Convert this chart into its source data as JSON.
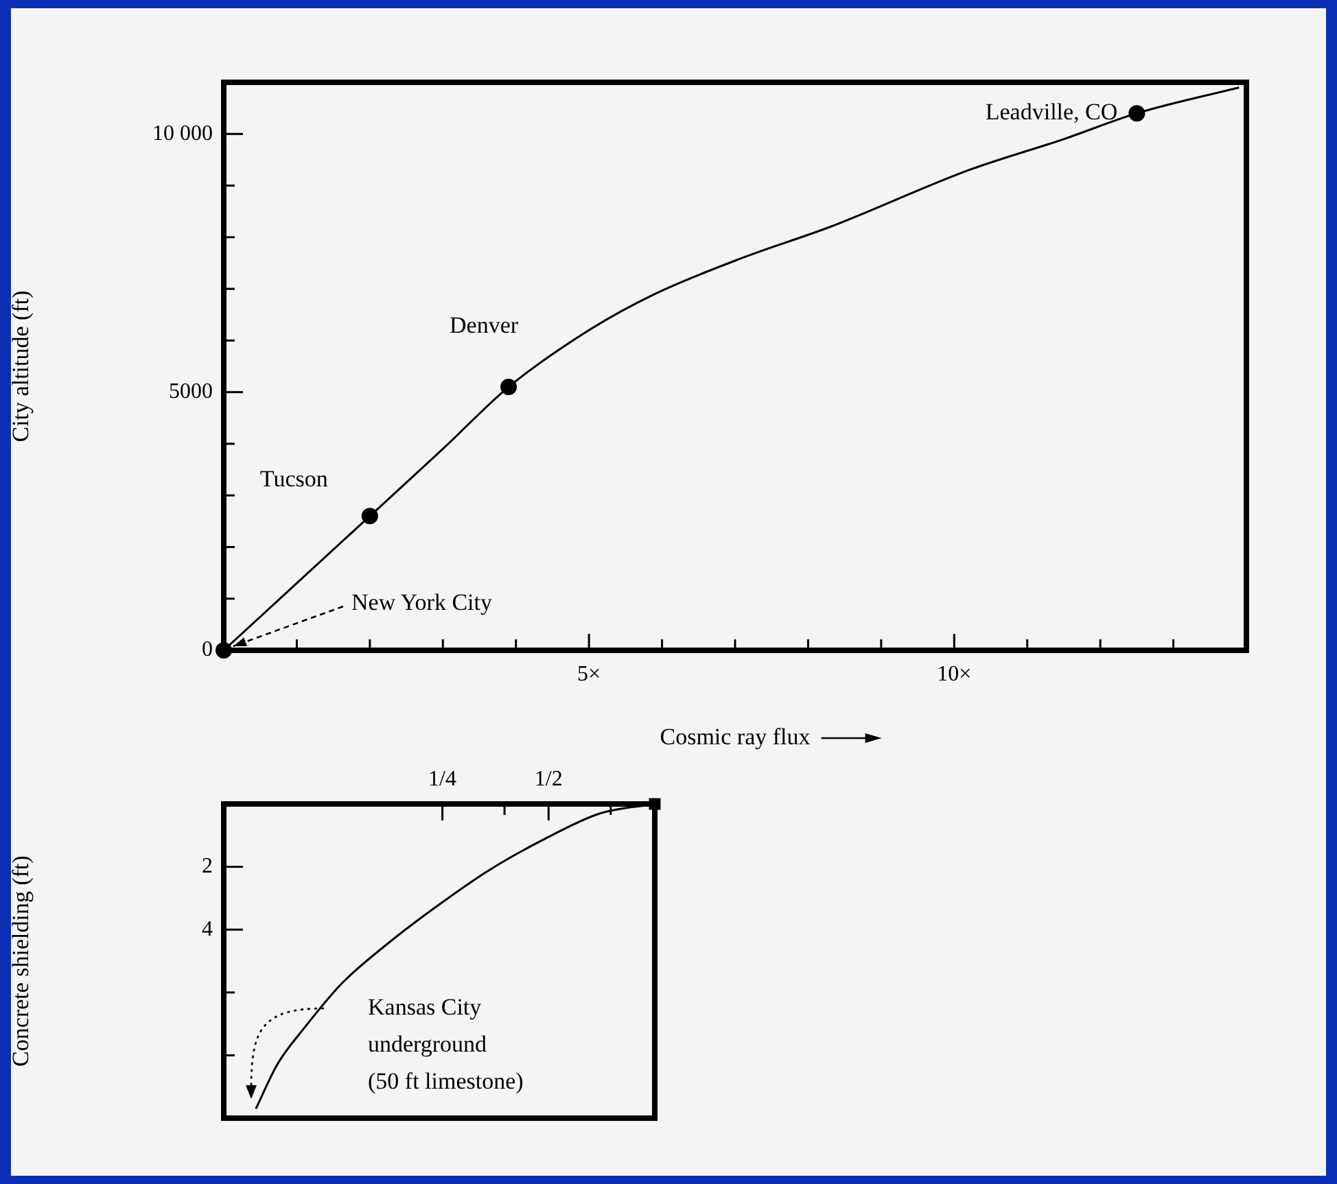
{
  "chart_data": [
    {
      "type": "line",
      "xlabel": "Cosmic ray flux",
      "ylabel": "City altitude (ft)",
      "xlim": [
        0,
        14
      ],
      "ylim": [
        0,
        11000
      ],
      "xticks": [
        {
          "value": 1,
          "label": null
        },
        {
          "value": 2,
          "label": null
        },
        {
          "value": 3,
          "label": null
        },
        {
          "value": 4,
          "label": null
        },
        {
          "value": 5,
          "label": "5×"
        },
        {
          "value": 6,
          "label": null
        },
        {
          "value": 7,
          "label": null
        },
        {
          "value": 8,
          "label": null
        },
        {
          "value": 9,
          "label": null
        },
        {
          "value": 10,
          "label": "10×"
        },
        {
          "value": 11,
          "label": null
        },
        {
          "value": 12,
          "label": null
        },
        {
          "value": 13,
          "label": null
        }
      ],
      "yticks": [
        0,
        {
          "value": 1000,
          "label": null
        },
        {
          "value": 2000,
          "label": null
        },
        {
          "value": 3000,
          "label": null
        },
        {
          "value": 4000,
          "label": null
        },
        5000,
        {
          "value": 6000,
          "label": null
        },
        {
          "value": 7000,
          "label": null
        },
        {
          "value": 8000,
          "label": null
        },
        {
          "value": 9000,
          "label": null
        },
        {
          "value": 10000,
          "label": "10 000"
        }
      ],
      "series": [
        {
          "type": "line",
          "color": "#000000",
          "marker": "none",
          "x": [
            0,
            1,
            2,
            3,
            3.9,
            5,
            5.9,
            7.1,
            8.3,
            10.2,
            11.5,
            12.5,
            13.9
          ],
          "values": [
            0,
            1300,
            2600,
            3900,
            5100,
            6200,
            6900,
            7600,
            8200,
            9300,
            9900,
            10400,
            10900
          ]
        },
        {
          "type": "scatter",
          "color": "#000000",
          "marker": "circle",
          "x": [
            0,
            2,
            3.9,
            12.5
          ],
          "values": [
            0,
            2600,
            5100,
            10400
          ]
        }
      ],
      "annotations": [
        {
          "text": "New York City",
          "x": 0,
          "y": 0
        },
        {
          "text": "Tucson",
          "x": 2,
          "y": 2600
        },
        {
          "text": "Denver",
          "x": 3.9,
          "y": 5100
        },
        {
          "text": "Leadville, CO",
          "x": 12.5,
          "y": 10400
        }
      ]
    },
    {
      "type": "line",
      "ylabel": "Concrete shielding (ft)",
      "log": "x",
      "xlim": [
        0.06,
        1
      ],
      "ylim": [
        10,
        0
      ],
      "xticks": [
        {
          "value": 0.25,
          "label": "1/4"
        },
        {
          "value": 0.375,
          "label": null
        },
        {
          "value": 0.5,
          "label": "1/2"
        },
        {
          "value": 0.75,
          "label": null
        }
      ],
      "yticks": [
        2,
        4,
        {
          "value": 6,
          "label": null
        },
        {
          "value": 8,
          "label": null
        }
      ],
      "series": [
        {
          "type": "line",
          "color": "#000000",
          "marker": "none",
          "x": [
            1,
            0.7,
            0.49,
            0.34,
            0.245,
            0.177,
            0.13,
            0.102,
            0.085,
            0.074
          ],
          "values": [
            0,
            0.3,
            1.1,
            2.1,
            3.2,
            4.4,
            5.7,
            7.1,
            8.3,
            9.7
          ]
        },
        {
          "type": "scatter",
          "color": "#000000",
          "marker": "square",
          "x": [
            1
          ],
          "values": [
            0
          ]
        }
      ],
      "annotations": [
        "Kansas City underground (50 ft limestone)"
      ]
    }
  ]
}
